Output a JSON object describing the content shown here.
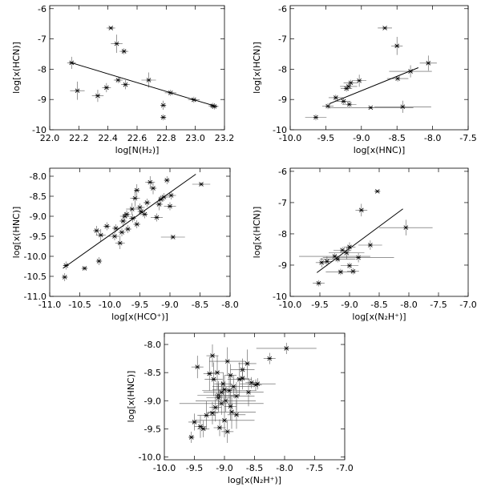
{
  "chart_data": [
    {
      "type": "scatter",
      "xlabel": "log[N(H₂)]",
      "ylabel": "log[x(HCN)]",
      "xlim": [
        22.0,
        23.2
      ],
      "ylim": [
        -10.0,
        -5.9
      ],
      "xticks": [
        "22.0",
        "22.2",
        "22.4",
        "22.6",
        "22.8",
        "23.0",
        "23.2"
      ],
      "yticks": [
        "-10",
        "-9",
        "-8",
        "-7",
        "-6"
      ],
      "x": [
        22.15,
        22.19,
        22.33,
        22.39,
        22.42,
        22.46,
        22.47,
        22.51,
        22.52,
        22.68,
        22.83,
        22.78,
        22.78,
        22.99,
        23.12,
        23.13
      ],
      "y": [
        -7.79,
        -8.71,
        -8.88,
        -8.61,
        -6.64,
        -7.16,
        -8.36,
        -7.41,
        -8.51,
        -8.36,
        -8.78,
        -9.19,
        -9.59,
        -9.01,
        -9.21,
        -9.23
      ],
      "xerr": [
        0.03,
        0.05,
        0.04,
        0.03,
        0.03,
        0.04,
        0.03,
        0.03,
        0.03,
        0.05,
        0.04,
        0.02,
        0.02,
        0.04,
        0.03,
        0.03
      ],
      "yerr": [
        0.2,
        0.3,
        0.2,
        0.15,
        0.05,
        0.3,
        0.1,
        0.1,
        0.15,
        0.25,
        0.1,
        0.15,
        0.1,
        0.1,
        0.1,
        0.1
      ],
      "fit": [
        [
          22.15,
          -7.79
        ],
        [
          23.15,
          -9.24
        ]
      ],
      "grid": false
    },
    {
      "type": "scatter",
      "xlabel": "log[x(HNC)]",
      "ylabel": "log[x(HCN)]",
      "xlim": [
        -10.0,
        -7.5
      ],
      "ylim": [
        -10.0,
        -5.9
      ],
      "xticks": [
        "-10.0",
        "-9.5",
        "-9.0",
        "-8.5",
        "-8.0",
        "-7.5"
      ],
      "yticks": [
        "-10",
        "-9",
        "-8",
        "-7",
        "-6"
      ],
      "x": [
        -8.67,
        -8.5,
        -8.06,
        -8.31,
        -8.49,
        -9.03,
        -9.15,
        -9.18,
        -9.21,
        -9.36,
        -9.25,
        -9.17,
        -8.87,
        -8.42,
        -9.64,
        -9.47
      ],
      "y": [
        -6.64,
        -7.23,
        -7.8,
        -8.07,
        -8.31,
        -8.38,
        -8.45,
        -8.57,
        -8.64,
        -8.94,
        -9.06,
        -9.16,
        -9.27,
        -9.24,
        -9.59,
        -9.22
      ],
      "xerr": [
        0.1,
        0.08,
        0.12,
        0.3,
        0.15,
        0.1,
        0.1,
        0.12,
        0.08,
        0.1,
        0.1,
        0.1,
        0.6,
        0.4,
        0.15,
        0.08
      ],
      "yerr": [
        0.05,
        0.3,
        0.25,
        0.2,
        0.1,
        0.2,
        0.1,
        0.1,
        0.1,
        0.1,
        0.1,
        0.1,
        0.05,
        0.2,
        0.1,
        0.1
      ],
      "fit": [
        [
          -9.45,
          -9.14
        ],
        [
          -8.2,
          -7.95
        ]
      ],
      "grid": false
    },
    {
      "type": "scatter",
      "xlabel": "log[x(HCO⁺)]",
      "ylabel": "log[x(HNC)]",
      "xlim": [
        -11.0,
        -8.0
      ],
      "ylim": [
        -11.0,
        -7.8
      ],
      "xticks": [
        "-11.0",
        "-10.5",
        "-10.0",
        "-9.5",
        "-9.0",
        "-8.5",
        "-8.0"
      ],
      "yticks": [
        "-11.0",
        "-10.5",
        "-10.0",
        "-9.5",
        "-9.0",
        "-8.5",
        "-8.0"
      ],
      "x": [
        -10.73,
        -10.75,
        -10.42,
        -10.18,
        -10.22,
        -10.15,
        -10.05,
        -9.92,
        -9.83,
        -9.78,
        -9.75,
        -9.7,
        -9.63,
        -9.58,
        -9.55,
        -9.5,
        -9.48,
        -9.42,
        -9.38,
        -9.33,
        -9.28,
        -9.22,
        -9.18,
        -9.15,
        -9.1,
        -9.05,
        -9.0,
        -8.98,
        -8.95,
        -8.48,
        -9.55,
        -9.62,
        -9.72,
        -9.8,
        -9.9
      ],
      "y": [
        -10.23,
        -10.52,
        -10.3,
        -10.12,
        -9.36,
        -9.47,
        -9.25,
        -9.5,
        -9.67,
        -9.12,
        -9.0,
        -9.32,
        -8.82,
        -8.55,
        -8.35,
        -8.78,
        -8.88,
        -8.95,
        -8.66,
        -8.15,
        -8.3,
        -9.03,
        -8.7,
        -8.58,
        -8.52,
        -8.1,
        -8.75,
        -8.48,
        -9.52,
        -8.2,
        -9.2,
        -9.05,
        -8.95,
        -9.4,
        -9.3
      ],
      "xerr": [
        0.05,
        0.05,
        0.05,
        0.05,
        0.06,
        0.08,
        0.06,
        0.1,
        0.08,
        0.06,
        0.08,
        0.06,
        0.1,
        0.08,
        0.05,
        0.08,
        0.06,
        0.05,
        0.06,
        0.08,
        0.06,
        0.1,
        0.06,
        0.05,
        0.08,
        0.05,
        0.1,
        0.08,
        0.2,
        0.15,
        0.06,
        0.06,
        0.06,
        0.06,
        0.06
      ],
      "yerr": [
        0.1,
        0.1,
        0.05,
        0.1,
        0.12,
        0.15,
        0.1,
        0.1,
        0.15,
        0.15,
        0.1,
        0.1,
        0.15,
        0.2,
        0.15,
        0.1,
        0.1,
        0.1,
        0.1,
        0.15,
        0.15,
        0.1,
        0.15,
        0.1,
        0.1,
        0.1,
        0.1,
        0.1,
        0.05,
        0.05,
        0.1,
        0.1,
        0.1,
        0.1,
        0.1
      ],
      "fit": [
        [
          -10.78,
          -10.3
        ],
        [
          -8.57,
          -7.95
        ]
      ],
      "grid": false
    },
    {
      "type": "scatter",
      "xlabel": "log[x(N₂H⁺)]",
      "ylabel": "log[x(HCN)]",
      "xlim": [
        -10.0,
        -7.0
      ],
      "ylim": [
        -10.0,
        -5.9
      ],
      "xticks": [
        "-10.0",
        "-9.5",
        "-9.0",
        "-8.5",
        "-8.0",
        "-7.5",
        "-7.0"
      ],
      "yticks": [
        "-10",
        "-9",
        "-8",
        "-7",
        "-6"
      ],
      "x": [
        -8.53,
        -8.8,
        -8.05,
        -8.65,
        -9.0,
        -9.05,
        -9.25,
        -9.2,
        -8.85,
        -9.38,
        -9.0,
        -8.94,
        -9.15,
        -9.52,
        -9.47,
        -9.12
      ],
      "y": [
        -6.64,
        -7.24,
        -7.8,
        -8.36,
        -8.42,
        -8.61,
        -8.72,
        -8.81,
        -8.76,
        -8.88,
        -9.02,
        -9.2,
        -9.22,
        -9.58,
        -8.92,
        -8.52
      ],
      "xerr": [
        0.05,
        0.1,
        0.45,
        0.2,
        0.1,
        0.3,
        0.6,
        0.3,
        0.6,
        0.1,
        0.15,
        0.1,
        0.25,
        0.1,
        0.1,
        0.15
      ],
      "yerr": [
        0.05,
        0.2,
        0.25,
        0.15,
        0.15,
        0.2,
        0.1,
        0.1,
        0.15,
        0.15,
        0.1,
        0.1,
        0.1,
        0.1,
        0.15,
        0.1
      ],
      "fit": [
        [
          -9.55,
          -9.24
        ],
        [
          -8.1,
          -7.2
        ]
      ],
      "grid": false
    },
    {
      "type": "scatter",
      "xlabel": "log[x(N₂H⁺)]",
      "ylabel": "log[x(HNC)]",
      "xlim": [
        -10.0,
        -7.0
      ],
      "ylim": [
        -10.05,
        -7.8
      ],
      "xticks": [
        "-10.0",
        "-9.5",
        "-9.0",
        "-8.5",
        "-8.0",
        "-7.5",
        "-7.0"
      ],
      "yticks": [
        "-10.0",
        "-9.5",
        "-9.0",
        "-8.5",
        "-8.0"
      ],
      "x": [
        -7.97,
        -8.25,
        -8.55,
        -8.45,
        -8.48,
        -8.62,
        -8.7,
        -8.75,
        -8.8,
        -8.85,
        -8.88,
        -8.9,
        -8.92,
        -8.95,
        -8.98,
        -9.0,
        -9.02,
        -9.05,
        -9.08,
        -9.1,
        -9.12,
        -9.15,
        -9.18,
        -9.2,
        -9.25,
        -9.3,
        -9.35,
        -9.4,
        -9.5,
        -9.55,
        -9.45,
        -9.2,
        -9.0,
        -8.9,
        -8.8,
        -8.7,
        -8.6,
        -9.1,
        -8.95,
        -9.05
      ],
      "y": [
        -8.07,
        -8.25,
        -8.68,
        -8.7,
        -8.72,
        -8.34,
        -8.45,
        -8.62,
        -8.92,
        -8.75,
        -9.2,
        -8.55,
        -8.82,
        -8.3,
        -9.0,
        -9.35,
        -8.7,
        -9.05,
        -9.48,
        -8.9,
        -8.5,
        -9.12,
        -8.62,
        -9.22,
        -8.52,
        -9.26,
        -9.5,
        -9.46,
        -9.38,
        -9.65,
        -8.4,
        -8.2,
        -8.8,
        -9.1,
        -9.25,
        -8.6,
        -8.85,
        -8.95,
        -9.55,
        -8.85
      ],
      "xerr": [
        0.5,
        0.1,
        0.1,
        0.3,
        0.1,
        0.15,
        0.2,
        0.2,
        0.3,
        0.35,
        0.4,
        0.1,
        0.45,
        0.3,
        0.5,
        0.5,
        0.15,
        0.7,
        0.1,
        0.35,
        0.1,
        0.1,
        0.15,
        0.1,
        0.1,
        0.15,
        0.1,
        0.1,
        0.1,
        0.05,
        0.1,
        0.1,
        0.2,
        0.1,
        0.15,
        0.1,
        0.25,
        0.2,
        0.1,
        0.3
      ],
      "yerr": [
        0.1,
        0.1,
        0.1,
        0.1,
        0.1,
        0.25,
        0.2,
        0.3,
        0.25,
        0.2,
        0.3,
        0.2,
        0.25,
        0.25,
        0.2,
        0.3,
        0.2,
        0.2,
        0.15,
        0.25,
        0.3,
        0.25,
        0.3,
        0.2,
        0.3,
        0.25,
        0.15,
        0.2,
        0.15,
        0.1,
        0.2,
        0.2,
        0.25,
        0.25,
        0.25,
        0.2,
        0.25,
        0.25,
        0.2,
        0.2
      ],
      "grid": false
    }
  ]
}
